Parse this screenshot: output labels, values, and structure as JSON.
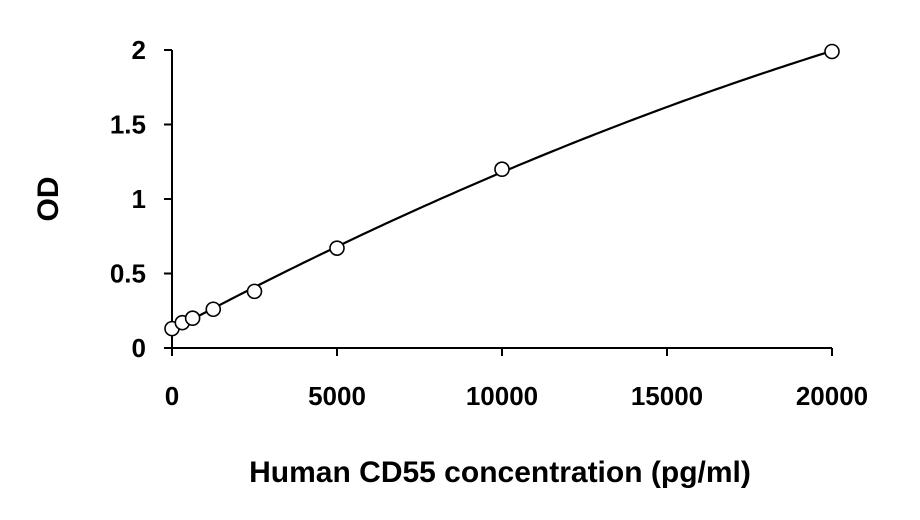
{
  "chart_data": {
    "type": "scatter",
    "title": "",
    "xlabel": "Human CD55 concentration (pg/ml)",
    "ylabel": "OD",
    "xlim": [
      0,
      20000
    ],
    "ylim": [
      0,
      2
    ],
    "xticks": [
      0,
      5000,
      10000,
      15000,
      20000
    ],
    "yticks": [
      0,
      0.5,
      1,
      1.5,
      2
    ],
    "xtick_labels": [
      "0",
      "5000",
      "10000",
      "15000",
      "20000"
    ],
    "ytick_labels": [
      "0",
      "0.5",
      "1",
      "1.5",
      "2"
    ],
    "grid": false,
    "legend": "none",
    "marker": "open-circle",
    "trendline": true,
    "x": [
      0,
      312.5,
      625,
      1250,
      2500,
      5000,
      10000,
      20000
    ],
    "y": [
      0.13,
      0.17,
      0.2,
      0.26,
      0.38,
      0.67,
      1.2,
      1.99
    ]
  }
}
